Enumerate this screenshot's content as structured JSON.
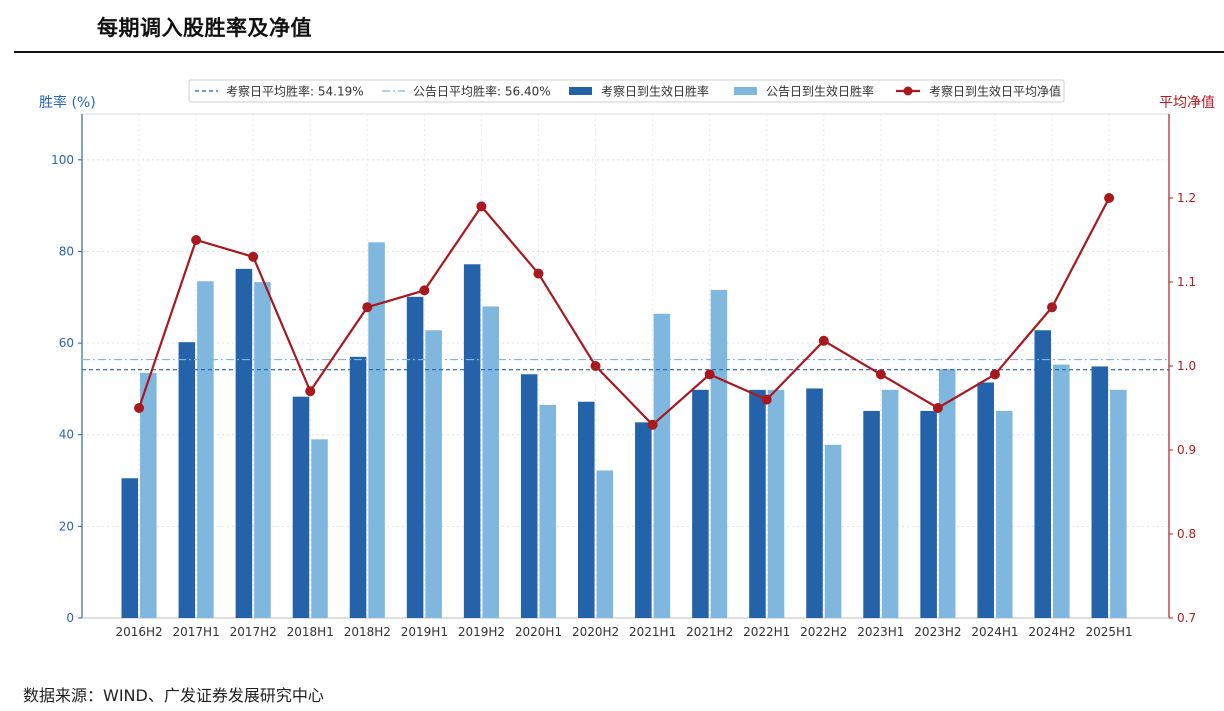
{
  "title": "每期调入股胜率及净值",
  "source": "数据来源：WIND、广发证券发展研究中心",
  "colors": {
    "dark_blue": "#2463a9",
    "light_blue": "#7fb7de",
    "red": "#a8191f",
    "left_axis": "#2966ae",
    "right_axis": "#b01c22"
  },
  "chart_data": {
    "type": "bar",
    "categories": [
      "2016H2",
      "2017H1",
      "2017H2",
      "2018H1",
      "2018H2",
      "2019H1",
      "2019H2",
      "2020H1",
      "2020H2",
      "2021H1",
      "2021H2",
      "2022H1",
      "2022H2",
      "2023H1",
      "2023H2",
      "2024H1",
      "2024H2",
      "2025H1"
    ],
    "series": [
      {
        "name": "考察日到生效日胜率",
        "type": "bar",
        "axis": "left",
        "values": [
          30.5,
          60.2,
          76.2,
          48.3,
          57.0,
          70.1,
          77.2,
          53.2,
          47.2,
          42.7,
          49.8,
          49.8,
          50.1,
          45.2,
          45.2,
          51.4,
          62.8,
          54.9
        ]
      },
      {
        "name": "公告日到生效日胜率",
        "type": "bar",
        "axis": "left",
        "values": [
          53.5,
          73.5,
          73.3,
          39.0,
          82.0,
          62.8,
          68.0,
          46.5,
          32.2,
          66.4,
          71.6,
          49.8,
          37.8,
          49.8,
          54.3,
          45.2,
          55.3,
          49.8
        ]
      },
      {
        "name": "考察日到生效日平均净值",
        "type": "line",
        "axis": "right",
        "values": [
          0.95,
          1.15,
          1.13,
          0.97,
          1.07,
          1.09,
          1.19,
          1.11,
          1.0,
          0.93,
          0.99,
          0.96,
          1.03,
          0.99,
          0.95,
          0.99,
          1.07,
          1.2
        ]
      }
    ],
    "reference_lines": [
      {
        "label": "考察日平均胜率: 54.19%",
        "value": 54.19,
        "style": "dashed"
      },
      {
        "label": "公告日平均胜率: 56.40%",
        "value": 56.4,
        "style": "dashdot"
      }
    ],
    "ylabel_left": "胜率 (%)",
    "ylabel_right": "平均净值",
    "ylim_left": [
      0,
      110
    ],
    "ylim_right": [
      0.7,
      1.3
    ],
    "yticks_left": [
      "0",
      "20",
      "40",
      "60",
      "80",
      "100"
    ],
    "yticks_right": [
      "0.7",
      "0.8",
      "0.9",
      "1.0",
      "1.1",
      "1.2"
    ],
    "grid": true,
    "legend_position": "top-center"
  }
}
